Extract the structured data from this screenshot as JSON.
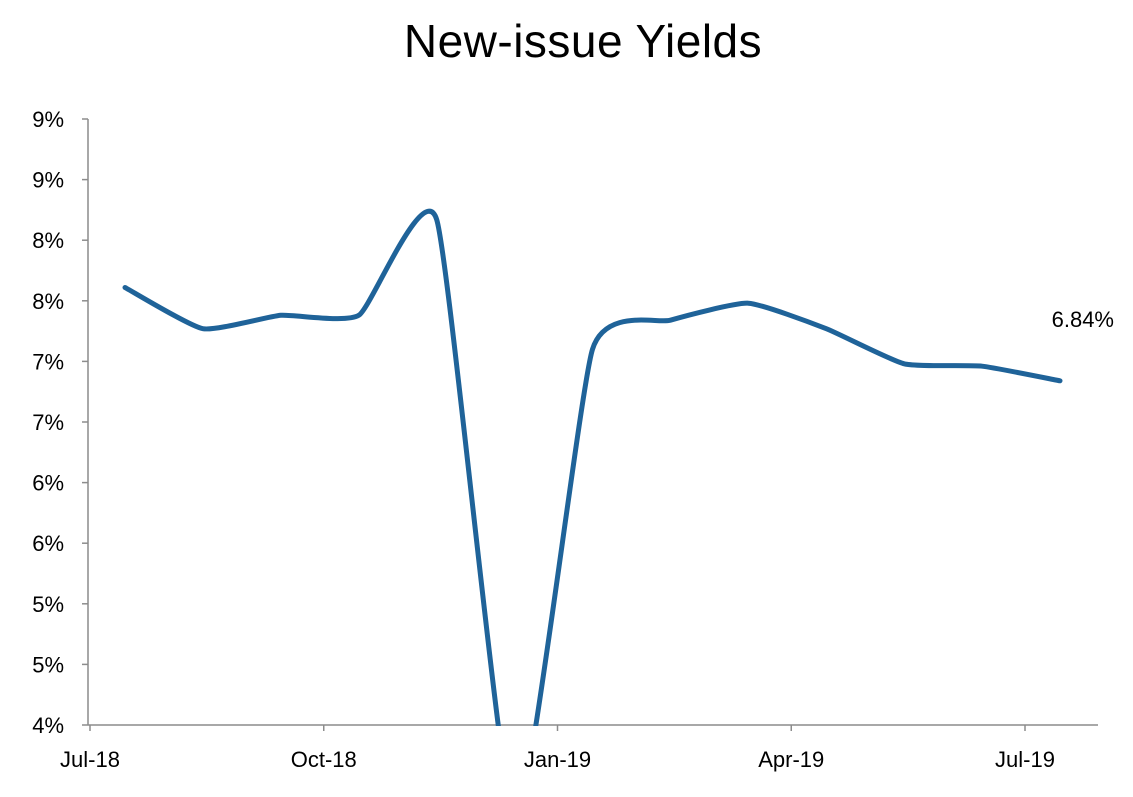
{
  "chart_data": {
    "type": "line",
    "title": "New-issue Yields",
    "xlabel": "",
    "ylabel": "",
    "x": [
      "2018-07",
      "2018-08",
      "2018-09",
      "2018-10",
      "2018-11",
      "2018-12",
      "2019-01",
      "2019-02",
      "2019-03",
      "2019-04",
      "2019-05",
      "2019-06",
      "2019-07"
    ],
    "series": [
      {
        "values": [
          7.61,
          7.27,
          7.38,
          7.38,
          8.17,
          3.2,
          7.1,
          7.34,
          7.48,
          7.27,
          6.98,
          6.96,
          6.84
        ],
        "color": "#1f6399"
      }
    ],
    "ylim": [
      4.0,
      9.0
    ],
    "y_ticks": [
      4.0,
      4.5,
      5.0,
      5.5,
      6.0,
      6.5,
      7.0,
      7.5,
      8.0,
      8.5,
      9.0
    ],
    "y_tick_labels": [
      "4%",
      "5%",
      "5%",
      "6%",
      "6%",
      "7%",
      "7%",
      "8%",
      "8%",
      "9%",
      "9%"
    ],
    "x_tick_labels": [
      "Jul-18",
      "Oct-18",
      "Jan-19",
      "Apr-19",
      "Jul-19"
    ],
    "x_tick_positions": [
      "2018-07",
      "2018-10",
      "2019-01",
      "2019-04",
      "2019-07"
    ],
    "annotations": [
      {
        "x": "2019-07",
        "text": "6.84%"
      }
    ],
    "grid": false,
    "legend": "none",
    "line_color": "#1f6399",
    "axis_color": "#8c8c8c"
  }
}
